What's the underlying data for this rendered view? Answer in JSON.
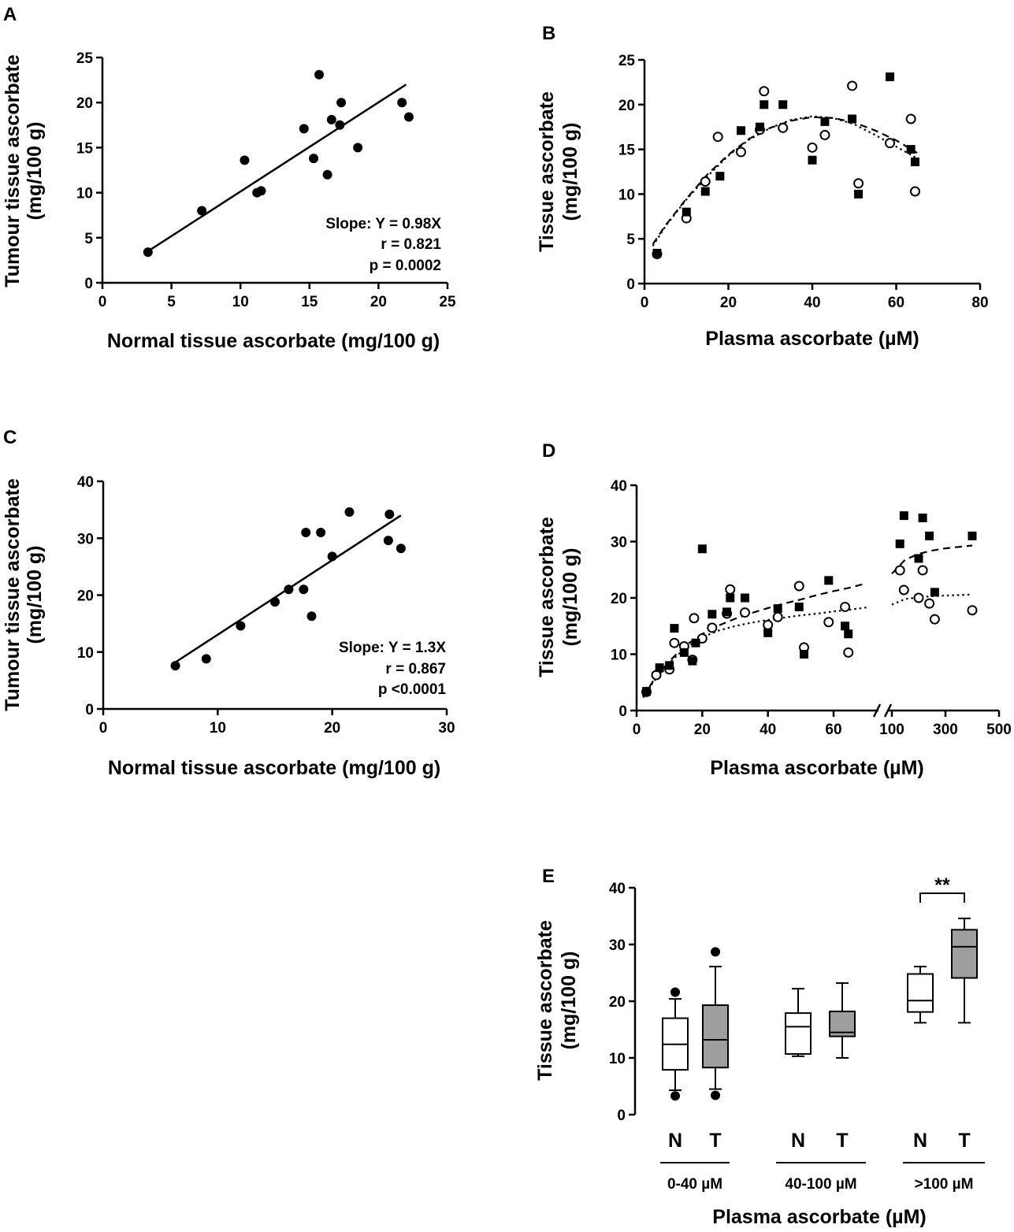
{
  "chart_data": [
    {
      "panel": "A",
      "type": "scatter",
      "xlabel": "Normal tissue ascorbate (mg/100 g)",
      "ylabel_lines": [
        "Tumour tissue ascorbate",
        "(mg/100 g)"
      ],
      "xlim": [
        0,
        25
      ],
      "ylim": [
        0,
        25
      ],
      "xticks": [
        0,
        5,
        10,
        15,
        20,
        25
      ],
      "yticks": [
        0,
        5,
        10,
        15,
        20,
        25
      ],
      "points": [
        [
          3.3,
          3.4
        ],
        [
          7.2,
          8.0
        ],
        [
          10.3,
          13.6
        ],
        [
          11.2,
          10.0
        ],
        [
          11.5,
          10.2
        ],
        [
          14.6,
          17.1
        ],
        [
          15.3,
          13.8
        ],
        [
          15.7,
          23.1
        ],
        [
          16.3,
          12.0
        ],
        [
          16.6,
          18.1
        ],
        [
          17.3,
          20.0
        ],
        [
          17.2,
          17.5
        ],
        [
          18.5,
          15.0
        ],
        [
          21.7,
          20.0
        ],
        [
          22.2,
          18.4
        ]
      ],
      "fit": {
        "label": "linear fit",
        "from": [
          3.3,
          3.5
        ],
        "to": [
          22.0,
          22.0
        ]
      },
      "annotations": [
        "Slope: Y = 0.98X",
        "r = 0.821",
        "p = 0.0002"
      ]
    },
    {
      "panel": "B",
      "type": "scatter",
      "xlabel": "Plasma ascorbate (µM)",
      "ylabel_lines": [
        "Tissue ascorbate",
        "(mg/100 g)"
      ],
      "xlim": [
        0,
        80
      ],
      "ylim": [
        0,
        25
      ],
      "xticks": [
        0,
        20,
        40,
        60,
        80
      ],
      "yticks": [
        0,
        5,
        10,
        15,
        20,
        25
      ],
      "series": [
        {
          "name": "Tumour",
          "marker": "filled-square",
          "points": [
            [
              3,
              3.4
            ],
            [
              10,
              8.0
            ],
            [
              14.5,
              10.3
            ],
            [
              18,
              12.0
            ],
            [
              23,
              17.1
            ],
            [
              27.5,
              17.5
            ],
            [
              28.5,
              20.0
            ],
            [
              33,
              20.0
            ],
            [
              40,
              13.8
            ],
            [
              43,
              18.1
            ],
            [
              49.5,
              18.4
            ],
            [
              51,
              10.0
            ],
            [
              58.5,
              23.1
            ],
            [
              63.5,
              15.0
            ],
            [
              64.5,
              13.6
            ]
          ]
        },
        {
          "name": "Normal",
          "marker": "open-circle",
          "points": [
            [
              3,
              3.3
            ],
            [
              10,
              7.3
            ],
            [
              14.5,
              11.4
            ],
            [
              17.5,
              16.4
            ],
            [
              23,
              14.7
            ],
            [
              27.5,
              17.2
            ],
            [
              28.5,
              21.5
            ],
            [
              33,
              17.4
            ],
            [
              40,
              15.2
            ],
            [
              43,
              16.6
            ],
            [
              49.5,
              22.1
            ],
            [
              51,
              11.2
            ],
            [
              58.5,
              15.7
            ],
            [
              63.5,
              18.4
            ],
            [
              64.5,
              10.3
            ]
          ]
        }
      ],
      "fits": [
        {
          "name": "Tumour fit",
          "style": "dashed",
          "points": [
            [
              2,
              4.4
            ],
            [
              5,
              6.5
            ],
            [
              10,
              9.5
            ],
            [
              15,
              12.2
            ],
            [
              20,
              14.4
            ],
            [
              25,
              16.2
            ],
            [
              30,
              17.4
            ],
            [
              35,
              18.2
            ],
            [
              40,
              18.6
            ],
            [
              45,
              18.5
            ],
            [
              50,
              18.0
            ],
            [
              55,
              17.1
            ],
            [
              60,
              16.0
            ],
            [
              65,
              14.6
            ]
          ]
        },
        {
          "name": "Normal fit",
          "style": "dotted",
          "points": [
            [
              2,
              4.2
            ],
            [
              5,
              6.4
            ],
            [
              10,
              9.4
            ],
            [
              15,
              12.0
            ],
            [
              20,
              14.3
            ],
            [
              25,
              16.1
            ],
            [
              30,
              17.4
            ],
            [
              35,
              18.3
            ],
            [
              40,
              18.7
            ],
            [
              45,
              18.5
            ],
            [
              50,
              17.8
            ],
            [
              55,
              16.6
            ],
            [
              60,
              15.3
            ],
            [
              65,
              14.0
            ]
          ]
        }
      ]
    },
    {
      "panel": "C",
      "type": "scatter",
      "xlabel": "Normal tissue ascorbate (mg/100 g)",
      "ylabel_lines": [
        "Tumour tissue ascorbate",
        "(mg/100 g)"
      ],
      "xlim": [
        0,
        30
      ],
      "ylim": [
        0,
        40
      ],
      "xticks": [
        0,
        10,
        20,
        30
      ],
      "yticks": [
        0,
        10,
        20,
        30,
        40
      ],
      "points": [
        [
          6.3,
          7.6
        ],
        [
          9.0,
          8.8
        ],
        [
          12.0,
          14.6
        ],
        [
          15.0,
          18.8
        ],
        [
          16.2,
          21.0
        ],
        [
          17.5,
          21.0
        ],
        [
          17.7,
          31.0
        ],
        [
          18.2,
          16.3
        ],
        [
          19.0,
          31.0
        ],
        [
          20.0,
          26.8
        ],
        [
          21.5,
          34.6
        ],
        [
          24.9,
          29.6
        ],
        [
          25.0,
          34.2
        ],
        [
          26.0,
          28.2
        ]
      ],
      "fit": {
        "label": "linear fit",
        "from": [
          6.3,
          8.2
        ],
        "to": [
          26.0,
          34.0
        ]
      },
      "annotations": [
        "Slope: Y = 1.3X",
        "r = 0.867",
        "p <0.0001"
      ]
    },
    {
      "panel": "D",
      "type": "scatter",
      "xlabel": "Plasma ascorbate (µM)",
      "ylabel_lines": [
        "Tissue ascorbate",
        "(mg/100 g)"
      ],
      "ylim": [
        0,
        40
      ],
      "yticks": [
        0,
        10,
        20,
        30,
        40
      ],
      "x_segments": [
        {
          "range": [
            0,
            70
          ],
          "ticks": [
            0,
            20,
            40,
            60
          ]
        },
        {
          "range": [
            100,
            500
          ],
          "ticks": [
            100,
            300,
            500
          ],
          "tick_labels": [
            "100",
            "300",
            "500"
          ]
        }
      ],
      "series": [
        {
          "name": "Tumour",
          "marker": "filled-square",
          "points": [
            [
              3,
              3.4
            ],
            [
              7,
              7.6
            ],
            [
              10,
              8.0
            ],
            [
              11.5,
              14.6
            ],
            [
              14.5,
              10.3
            ],
            [
              17,
              8.8
            ],
            [
              18,
              12.0
            ],
            [
              20,
              28.7
            ],
            [
              23,
              17.1
            ],
            [
              27.5,
              17.5
            ],
            [
              28.5,
              20.0
            ],
            [
              33,
              20.0
            ],
            [
              40,
              13.8
            ],
            [
              43,
              18.1
            ],
            [
              49.5,
              18.4
            ],
            [
              51,
              10.0
            ],
            [
              58.5,
              23.1
            ],
            [
              63.5,
              15.0
            ],
            [
              64.5,
              13.6
            ],
            [
              130,
              29.6
            ],
            [
              145,
              34.6
            ],
            [
              200,
              27.0
            ],
            [
              215,
              34.2
            ],
            [
              240,
              31.0
            ],
            [
              260,
              21.0
            ],
            [
              400,
              31.0
            ]
          ]
        },
        {
          "name": "Normal",
          "marker": "open-circle",
          "points": [
            [
              3,
              3.3
            ],
            [
              6,
              6.3
            ],
            [
              10,
              7.3
            ],
            [
              11.5,
              12.0
            ],
            [
              14.5,
              11.4
            ],
            [
              17,
              9.0
            ],
            [
              17.5,
              16.4
            ],
            [
              20,
              12.8
            ],
            [
              23,
              14.7
            ],
            [
              27.5,
              17.2
            ],
            [
              28.5,
              21.5
            ],
            [
              33,
              17.4
            ],
            [
              40,
              15.2
            ],
            [
              43,
              16.6
            ],
            [
              49.5,
              22.1
            ],
            [
              51,
              11.2
            ],
            [
              58.5,
              15.7
            ],
            [
              63.5,
              18.4
            ],
            [
              64.5,
              10.3
            ],
            [
              130,
              24.9
            ],
            [
              145,
              21.4
            ],
            [
              200,
              20.0
            ],
            [
              215,
              24.9
            ],
            [
              240,
              19.0
            ],
            [
              260,
              16.2
            ],
            [
              400,
              17.8
            ]
          ]
        }
      ],
      "fits": [
        {
          "name": "Tumour fit",
          "style": "dashed",
          "points": [
            [
              2,
              2.4
            ],
            [
              5,
              5.2
            ],
            [
              10,
              8.8
            ],
            [
              15,
              11.6
            ],
            [
              20,
              13.6
            ],
            [
              25,
              15.1
            ],
            [
              30,
              16.3
            ],
            [
              35,
              17.3
            ],
            [
              40,
              18.2
            ],
            [
              45,
              19.0
            ],
            [
              50,
              19.7
            ],
            [
              55,
              20.5
            ],
            [
              60,
              21.2
            ],
            [
              65,
              21.8
            ],
            [
              70,
              22.6
            ]
          ],
          "points_high": [
            [
              100,
              24.3
            ],
            [
              150,
              26.8
            ],
            [
              200,
              27.8
            ],
            [
              250,
              28.4
            ],
            [
              300,
              28.8
            ],
            [
              400,
              29.3
            ]
          ]
        },
        {
          "name": "Normal fit",
          "style": "dotted",
          "points": [
            [
              2,
              2.3
            ],
            [
              5,
              5.0
            ],
            [
              10,
              8.5
            ],
            [
              15,
              11.2
            ],
            [
              20,
              13.0
            ],
            [
              25,
              14.2
            ],
            [
              30,
              15.0
            ],
            [
              35,
              15.6
            ],
            [
              40,
              16.1
            ],
            [
              45,
              16.5
            ],
            [
              50,
              16.9
            ],
            [
              55,
              17.2
            ],
            [
              60,
              17.6
            ],
            [
              65,
              17.9
            ],
            [
              70,
              18.3
            ]
          ],
          "points_high": [
            [
              100,
              18.8
            ],
            [
              150,
              19.8
            ],
            [
              200,
              20.1
            ],
            [
              250,
              20.3
            ],
            [
              300,
              20.4
            ],
            [
              400,
              20.6
            ]
          ]
        }
      ]
    },
    {
      "panel": "E",
      "type": "box",
      "ylabel_lines": [
        "Tissue ascorbate",
        "(mg/100 g)"
      ],
      "xlabel": "Plasma ascorbate (µM)",
      "ylim": [
        0,
        40
      ],
      "yticks": [
        0,
        10,
        20,
        30,
        40
      ],
      "groups": [
        {
          "label": "0-40 µM",
          "boxes": [
            {
              "label": "N",
              "fill": "#ffffff",
              "whisker_low": 4.3,
              "q1": 7.9,
              "median": 12.4,
              "q3": 17.0,
              "whisker_high": 20.4,
              "outliers": [
                3.3,
                21.6
              ]
            },
            {
              "label": "T",
              "fill": "#9e9e9e",
              "whisker_low": 4.5,
              "q1": 8.3,
              "median": 13.2,
              "q3": 19.3,
              "whisker_high": 26.1,
              "outliers": [
                3.4,
                28.7
              ]
            }
          ]
        },
        {
          "label": "40-100 µM",
          "boxes": [
            {
              "label": "N",
              "fill": "#ffffff",
              "whisker_low": 10.3,
              "q1": 10.7,
              "median": 15.5,
              "q3": 17.9,
              "whisker_high": 22.2,
              "outliers": []
            },
            {
              "label": "T",
              "fill": "#9e9e9e",
              "whisker_low": 10.0,
              "q1": 13.8,
              "median": 14.5,
              "q3": 18.2,
              "whisker_high": 23.2,
              "outliers": []
            }
          ]
        },
        {
          "label": ">100 µM",
          "boxes": [
            {
              "label": "N",
              "fill": "#ffffff",
              "whisker_low": 16.2,
              "q1": 18.1,
              "median": 20.1,
              "q3": 24.8,
              "whisker_high": 26.1,
              "outliers": []
            },
            {
              "label": "T",
              "fill": "#9e9e9e",
              "whisker_low": 16.2,
              "q1": 24.1,
              "median": 29.6,
              "q3": 32.6,
              "whisker_high": 34.6,
              "outliers": []
            }
          ]
        }
      ],
      "significance": "**"
    }
  ]
}
